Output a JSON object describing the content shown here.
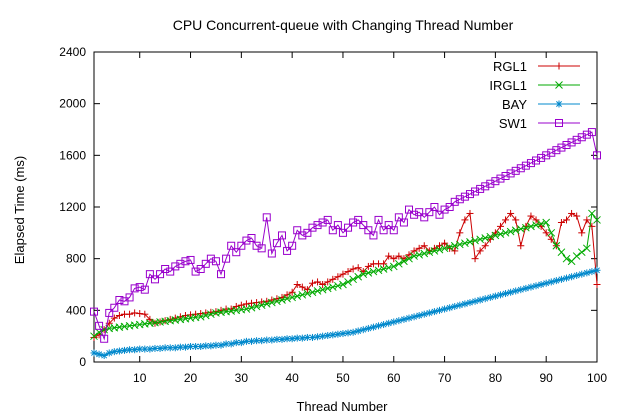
{
  "chart_data": {
    "type": "line",
    "title": "CPU Concurrent-queue with Changing Thread Number",
    "xlabel": "Thread Number",
    "ylabel": "Elapsed Time (ms)",
    "xlim": [
      1,
      100
    ],
    "ylim": [
      0,
      2400
    ],
    "xticks": [
      10,
      20,
      30,
      40,
      50,
      60,
      70,
      80,
      90,
      100
    ],
    "yticks": [
      0,
      400,
      800,
      1200,
      1600,
      2000,
      2400
    ],
    "grid": false,
    "legend_position": "top-right",
    "series": [
      {
        "name": "RGL1",
        "color": "#cc0000",
        "marker": "plus",
        "values": [
          190,
          210,
          250,
          300,
          340,
          360,
          370,
          370,
          380,
          375,
          370,
          330,
          300,
          310,
          320,
          330,
          340,
          350,
          360,
          365,
          370,
          375,
          380,
          385,
          390,
          400,
          410,
          410,
          430,
          440,
          450,
          455,
          460,
          465,
          470,
          480,
          490,
          500,
          520,
          540,
          600,
          580,
          560,
          610,
          620,
          600,
          620,
          640,
          660,
          680,
          700,
          720,
          730,
          700,
          740,
          760,
          760,
          760,
          820,
          800,
          820,
          800,
          830,
          860,
          880,
          900,
          860,
          880,
          900,
          920,
          880,
          860,
          1000,
          1100,
          1150,
          800,
          860,
          900,
          950,
          1000,
          1050,
          1100,
          1150,
          1100,
          900,
          1050,
          1130,
          1100,
          1050,
          1000,
          950,
          900,
          1080,
          1100,
          1150,
          1130,
          1000,
          1100,
          1050,
          600
        ]
      },
      {
        "name": "IRGL1",
        "color": "#00aa00",
        "marker": "cross",
        "values": [
          200,
          230,
          250,
          260,
          265,
          270,
          275,
          280,
          285,
          290,
          295,
          300,
          305,
          310,
          315,
          320,
          325,
          330,
          335,
          340,
          345,
          350,
          360,
          370,
          380,
          385,
          390,
          395,
          400,
          405,
          410,
          420,
          430,
          440,
          450,
          460,
          470,
          480,
          490,
          500,
          510,
          520,
          530,
          540,
          550,
          560,
          570,
          580,
          590,
          600,
          620,
          640,
          660,
          680,
          690,
          700,
          710,
          720,
          730,
          740,
          760,
          780,
          800,
          820,
          830,
          840,
          850,
          860,
          870,
          880,
          890,
          900,
          910,
          920,
          930,
          940,
          950,
          960,
          970,
          980,
          990,
          1000,
          1010,
          1020,
          1030,
          1040,
          1050,
          1060,
          1070,
          1080,
          1000,
          900,
          850,
          800,
          780,
          820,
          850,
          880,
          1150,
          1100
        ]
      },
      {
        "name": "BAY",
        "color": "#0088cc",
        "marker": "asterisk",
        "values": [
          70,
          60,
          50,
          70,
          80,
          85,
          90,
          95,
          95,
          100,
          100,
          100,
          105,
          105,
          110,
          110,
          110,
          115,
          115,
          120,
          120,
          120,
          125,
          125,
          130,
          130,
          140,
          140,
          150,
          150,
          160,
          160,
          165,
          165,
          170,
          170,
          175,
          175,
          180,
          180,
          185,
          185,
          190,
          190,
          195,
          200,
          205,
          210,
          215,
          220,
          225,
          230,
          240,
          250,
          260,
          270,
          280,
          290,
          300,
          310,
          320,
          330,
          340,
          350,
          360,
          370,
          380,
          390,
          400,
          410,
          420,
          430,
          440,
          450,
          460,
          470,
          480,
          490,
          500,
          510,
          520,
          530,
          540,
          550,
          560,
          570,
          580,
          590,
          600,
          610,
          620,
          630,
          640,
          650,
          660,
          670,
          680,
          690,
          700,
          710
        ]
      },
      {
        "name": "SW1",
        "color": "#9900cc",
        "marker": "square",
        "values": [
          390,
          280,
          180,
          380,
          420,
          480,
          470,
          500,
          570,
          580,
          560,
          680,
          640,
          680,
          720,
          700,
          740,
          760,
          780,
          790,
          700,
          720,
          760,
          800,
          780,
          680,
          800,
          900,
          850,
          900,
          940,
          960,
          900,
          880,
          1120,
          840,
          920,
          980,
          860,
          900,
          1020,
          980,
          1000,
          1040,
          1060,
          1080,
          1100,
          1020,
          1060,
          1000,
          1040,
          1080,
          1100,
          1060,
          1020,
          980,
          1100,
          1020,
          1060,
          1020,
          1120,
          1080,
          1180,
          1140,
          1160,
          1120,
          1160,
          1200,
          1140,
          1180,
          1200,
          1240,
          1260,
          1280,
          1300,
          1320,
          1340,
          1360,
          1380,
          1400,
          1420,
          1440,
          1460,
          1480,
          1500,
          1520,
          1540,
          1560,
          1580,
          1600,
          1620,
          1640,
          1660,
          1680,
          1700,
          1720,
          1740,
          1760,
          1780,
          1600
        ]
      }
    ]
  }
}
